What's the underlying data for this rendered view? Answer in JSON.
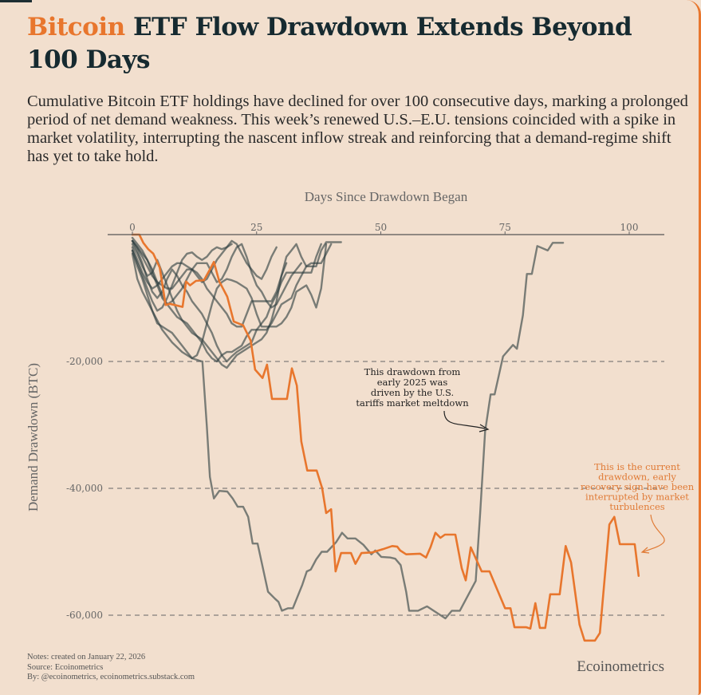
{
  "header": {
    "title_accent": "Bitcoin",
    "title_rest": " ETF Flow Drawdown Extends Beyond 100 Days",
    "subtitle": "Cumulative Bitcoin ETF holdings have declined for over 100 consecutive days, marking a prolonged period of net demand weakness. This week’s renewed U.S.–E.U. tensions coincided with a spike in market volatility, interrupting the nascent inflow streak and reinforcing that a demand-regime shift has yet to take hold."
  },
  "footer": {
    "notes": "Notes: created on January 22, 2026",
    "source": "Source: Ecoinometrics",
    "by": "By: @ecoinometrics, ecoinometrics.substack.com",
    "brand": "Ecoinometrics"
  },
  "colors": {
    "background": "#F2DFCE",
    "accent": "#E8762D",
    "history_line": "#2F3F40",
    "title": "#162A30"
  },
  "chart_data": {
    "type": "line",
    "title": "Bitcoin ETF Flow Drawdown Extends Beyond 100 Days",
    "xlabel": "Days Since Drawdown Began",
    "ylabel": "Demand Drawdown (BTC)",
    "x_axis_position": "top",
    "xlim": [
      -5,
      107
    ],
    "ylim": [
      -66000,
      0
    ],
    "xticks": [
      0,
      25,
      50,
      75,
      100
    ],
    "xtick_labels": [
      "0",
      "25",
      "50",
      "75",
      "100"
    ],
    "yticks": [
      -20000,
      -40000,
      -60000
    ],
    "ytick_labels": [
      "-20,000",
      "-40,000",
      "-60,000"
    ],
    "grid": "horizontal dashed",
    "annotations": [
      {
        "id": "tariffs",
        "lines": [
          "This drawdown from",
          "early 2025 was",
          "driven by the U.S.",
          "tariffs market meltdown"
        ],
        "points_to": {
          "x": 72,
          "y": -31000
        },
        "color": "dark"
      },
      {
        "id": "current",
        "lines": [
          "This is the current",
          "drawdown, early",
          "recovery sign have been",
          "interrupted by market",
          "turbulences"
        ],
        "points_to": {
          "x": 103,
          "y": -50000
        },
        "color": "orange"
      }
    ],
    "series": [
      {
        "name": "Current drawdown",
        "highlight": true,
        "x": [
          0,
          1.4,
          2.2,
          3.2,
          4.2,
          5.5,
          6.7,
          7.5,
          10.1,
          10.8,
          11.6,
          12.8,
          14.4,
          15.6,
          16.4,
          17.5,
          19.1,
          20.4,
          22.3,
          23.8,
          24.7,
          26.2,
          27.1,
          28.1,
          31.1,
          32.1,
          33.1,
          34,
          35.2,
          37.1,
          38.2,
          39,
          40,
          40.9,
          42,
          44,
          44.9,
          46.1,
          48.3,
          50.4,
          52.3,
          53.3,
          53.9,
          55.1,
          57.9,
          59.1,
          60,
          61,
          62,
          62.9,
          65,
          66.3,
          67.1,
          68.1,
          70.3,
          71.9,
          75,
          76.1,
          76.9,
          79.3,
          80.1,
          81.1,
          82,
          83.1,
          84.1,
          86,
          87.2,
          88.3,
          90,
          91,
          93.1,
          94.1,
          96,
          97,
          98.1,
          101.1,
          101.9
        ],
        "y": [
          0,
          0,
          -1300,
          -2300,
          -3000,
          -5200,
          -11100,
          -10900,
          -11400,
          -7400,
          -8000,
          -7300,
          -7200,
          -5500,
          -4300,
          -7400,
          -9800,
          -13700,
          -14300,
          -16700,
          -21300,
          -22600,
          -20500,
          -25900,
          -25900,
          -21100,
          -23800,
          -32600,
          -37200,
          -37200,
          -40000,
          -43900,
          -43300,
          -53100,
          -50200,
          -50200,
          -51900,
          -50200,
          -50100,
          -49600,
          -49100,
          -49200,
          -49800,
          -50400,
          -50300,
          -50900,
          -49300,
          -47000,
          -47800,
          -47300,
          -47300,
          -52600,
          -54500,
          -49300,
          -53100,
          -53100,
          -58900,
          -58900,
          -61900,
          -61900,
          -62100,
          -58100,
          -62000,
          -62000,
          -56700,
          -56700,
          -49100,
          -51700,
          -61500,
          -64000,
          -64000,
          -62800,
          -45700,
          -44500,
          -48800,
          -48800,
          -53800
        ]
      },
      {
        "name": "Early 2025 drawdown (U.S. tariffs)",
        "highlight": false,
        "x": [
          0,
          1,
          2,
          4,
          6,
          8,
          10,
          12,
          14,
          14.1,
          15,
          15.6,
          16.4,
          17.5,
          19.1,
          20.2,
          21.2,
          22.3,
          23.3,
          24.2,
          25.2,
          27.3,
          28.7,
          29.4,
          30.1,
          31.3,
          32.3,
          34.2,
          35.1,
          35.9,
          37,
          38.1,
          39.2,
          41,
          42.2,
          43.3,
          44.9,
          46.5,
          48.1,
          48.9,
          50.1,
          51.9,
          52.9,
          54,
          55.1,
          55.7,
          57.5,
          59.3,
          63,
          64.3,
          65.1,
          65.9,
          69.1,
          70,
          71,
          72.1,
          72.9,
          74.6,
          76.6,
          77.4,
          78.6,
          79.4,
          80.4,
          81.5,
          83.6,
          84.6,
          85.6,
          86.7
        ],
        "y": [
          -3000,
          -7000,
          -9000,
          -12000,
          -15000,
          -17000,
          -18500,
          -19500,
          -20000,
          -20000,
          -30300,
          -38200,
          -41600,
          -40400,
          -40500,
          -41600,
          -42900,
          -42900,
          -44500,
          -48700,
          -48700,
          -56300,
          -57400,
          -57900,
          -59300,
          -58900,
          -58900,
          -55200,
          -53100,
          -52800,
          -51200,
          -50000,
          -50000,
          -48500,
          -47000,
          -47900,
          -47900,
          -48900,
          -50400,
          -49800,
          -50800,
          -50900,
          -51100,
          -52100,
          -56300,
          -59300,
          -59300,
          -58600,
          -60500,
          -59300,
          -59300,
          -59300,
          -54600,
          -43900,
          -31000,
          -25200,
          -25200,
          -19200,
          -17400,
          -18000,
          -12700,
          -6200,
          -6200,
          -1800,
          -2500,
          -1300,
          -1300,
          -1300
        ]
      },
      {
        "name": "Historical drawdown 3",
        "highlight": false,
        "x": [
          0,
          1,
          2,
          3,
          4,
          5,
          6,
          7,
          8,
          9,
          10,
          11,
          12,
          13,
          14,
          15,
          16,
          17,
          18,
          19,
          20,
          21,
          22,
          23,
          24,
          25,
          26,
          27,
          28,
          29,
          30,
          31,
          32,
          33,
          34,
          35,
          36,
          37,
          38,
          39,
          40,
          41,
          42
        ],
        "y": [
          -1500,
          -3000,
          -5000,
          -6500,
          -6000,
          -4000,
          -6000,
          -8000,
          -10000,
          -12000,
          -13500,
          -14500,
          -15500,
          -16000,
          -16500,
          -17500,
          -18500,
          -19500,
          -20500,
          -21000,
          -20000,
          -19000,
          -18500,
          -18000,
          -17500,
          -17000,
          -16500,
          -15500,
          -13500,
          -10500,
          -6500,
          -3500,
          -2500,
          -1500,
          -3500,
          -5000,
          -5000,
          -5000,
          -2500,
          -1200,
          -1200,
          -1200,
          -1200
        ]
      },
      {
        "name": "Historical drawdown 4",
        "highlight": false,
        "x": [
          0,
          1,
          2,
          3,
          4,
          5,
          6,
          7,
          8,
          9,
          10,
          11,
          12,
          13,
          14,
          15,
          16,
          17,
          18,
          19,
          20,
          21,
          22,
          23,
          24,
          25,
          26,
          27,
          28,
          29,
          30,
          31,
          32,
          33,
          34,
          35,
          36,
          37,
          38,
          39
        ],
        "y": [
          -2500,
          -5000,
          -7000,
          -9500,
          -12000,
          -14000,
          -14500,
          -15000,
          -15500,
          -16500,
          -17500,
          -18500,
          -19500,
          -19000,
          -17000,
          -14000,
          -11000,
          -8500,
          -7500,
          -7000,
          -7200,
          -7500,
          -8000,
          -8500,
          -10000,
          -12500,
          -14500,
          -14500,
          -14500,
          -14500,
          -14000,
          -13000,
          -11500,
          -9000,
          -8500,
          -8000,
          -9500,
          -11500,
          -8500,
          -1500
        ]
      },
      {
        "name": "Historical drawdown 5",
        "highlight": false,
        "x": [
          0,
          1,
          2,
          3,
          4,
          5,
          6,
          7,
          8,
          9,
          10,
          11,
          12,
          13,
          14,
          15,
          16,
          17,
          18,
          19,
          20,
          21,
          22,
          23,
          24,
          25,
          26,
          27,
          28,
          29,
          30,
          31,
          32,
          33,
          34,
          35,
          36,
          37,
          38
        ],
        "y": [
          -1000,
          -2500,
          -4500,
          -7000,
          -9000,
          -10000,
          -9000,
          -7000,
          -5500,
          -6500,
          -8000,
          -9000,
          -10500,
          -11500,
          -12500,
          -14000,
          -15500,
          -17500,
          -19000,
          -20000,
          -19200,
          -18500,
          -18000,
          -17500,
          -17000,
          -15000,
          -14000,
          -13000,
          -11000,
          -9500,
          -7500,
          -6000,
          -6000,
          -6000,
          -6000,
          -6000,
          -6000,
          -3500,
          -1500
        ]
      },
      {
        "name": "Historical drawdown 6",
        "highlight": false,
        "x": [
          0,
          1,
          2,
          3,
          4,
          5,
          6,
          7,
          8,
          9,
          10,
          11,
          12,
          13,
          14,
          15,
          16,
          17,
          18,
          19,
          20,
          21,
          22,
          23,
          24,
          25,
          26,
          27,
          28,
          29,
          30,
          31
        ],
        "y": [
          -2000,
          -4000,
          -6000,
          -7500,
          -8500,
          -8000,
          -7000,
          -6000,
          -5000,
          -4500,
          -4500,
          -5000,
          -5500,
          -6000,
          -7000,
          -8500,
          -9500,
          -10500,
          -11500,
          -12500,
          -14000,
          -14500,
          -14500,
          -12500,
          -10500,
          -10500,
          -10500,
          -10500,
          -10500,
          -9000,
          -6500,
          -4500
        ]
      },
      {
        "name": "Historical drawdown 7",
        "highlight": false,
        "x": [
          0,
          1,
          2,
          3,
          4,
          5,
          6,
          7,
          8,
          9,
          10,
          11,
          12,
          13,
          14,
          15,
          16,
          17,
          18,
          19,
          20,
          21,
          22,
          23,
          24,
          25,
          26,
          27,
          28,
          29,
          30,
          31,
          32,
          33,
          34
        ],
        "y": [
          -500,
          -1500,
          -2500,
          -4000,
          -6000,
          -8000,
          -10000,
          -11000,
          -10500,
          -9500,
          -8500,
          -7000,
          -5500,
          -4500,
          -4500,
          -4500,
          -6000,
          -7500,
          -7000,
          -5500,
          -3500,
          -2000,
          -1500,
          -3500,
          -6000,
          -8000,
          -9000,
          -10500,
          -11500,
          -11000,
          -9500,
          -8000,
          -6500,
          -5500,
          -4500
        ]
      },
      {
        "name": "Historical drawdown 8",
        "highlight": false,
        "x": [
          0,
          1,
          2,
          3,
          4,
          5,
          6,
          7,
          8,
          9,
          10,
          11,
          12,
          13,
          14,
          15,
          16,
          17,
          18,
          19,
          20,
          21,
          22,
          23,
          24,
          25,
          26,
          27,
          28,
          29
        ],
        "y": [
          -1000,
          -2000,
          -3500,
          -5000,
          -6500,
          -7500,
          -8000,
          -8500,
          -8500,
          -7500,
          -6500,
          -5500,
          -5500,
          -6500,
          -7500,
          -7000,
          -5500,
          -4000,
          -3000,
          -2000,
          -1000,
          -1500,
          -3000,
          -4500,
          -5500,
          -6500,
          -7000,
          -5500,
          -3500,
          -2000
        ]
      },
      {
        "name": "Historical drawdown 9",
        "highlight": false,
        "x": [
          0,
          1,
          2,
          3,
          4,
          5,
          6,
          7,
          8,
          9,
          10,
          11,
          12,
          13,
          14,
          15,
          16,
          17,
          18,
          19,
          20
        ],
        "y": [
          -2500,
          -4500,
          -6500,
          -8500,
          -10500,
          -12000,
          -11500,
          -10000,
          -8000,
          -6000,
          -4000,
          -3000,
          -2800,
          -3500,
          -4000,
          -3500,
          -2500,
          -2000,
          -2300,
          -2000,
          -1500
        ]
      },
      {
        "name": "Historical drawdown 10",
        "highlight": false,
        "x": [
          0,
          1,
          2,
          3,
          4,
          5,
          6,
          7,
          8,
          9,
          10,
          11,
          12,
          13,
          14,
          15,
          16,
          17,
          18,
          19,
          20,
          21,
          22,
          23,
          24,
          25,
          26,
          27,
          28,
          29,
          30,
          31,
          32,
          33,
          34,
          35,
          36,
          37,
          38,
          39,
          40
        ],
        "y": [
          -1000,
          -2000,
          -3000,
          -4000,
          -5500,
          -7500,
          -9500,
          -11000,
          -12000,
          -13000,
          -13500,
          -14000,
          -15000,
          -16000,
          -17000,
          -18500,
          -19500,
          -20000,
          -19000,
          -18500,
          -18500,
          -18000,
          -17500,
          -16000,
          -15000,
          -15000,
          -15000,
          -15000,
          -14000,
          -12500,
          -11000,
          -10500,
          -10000,
          -8000,
          -6500,
          -5000,
          -4500,
          -4500,
          -4500,
          -3000,
          -1500
        ]
      }
    ]
  }
}
